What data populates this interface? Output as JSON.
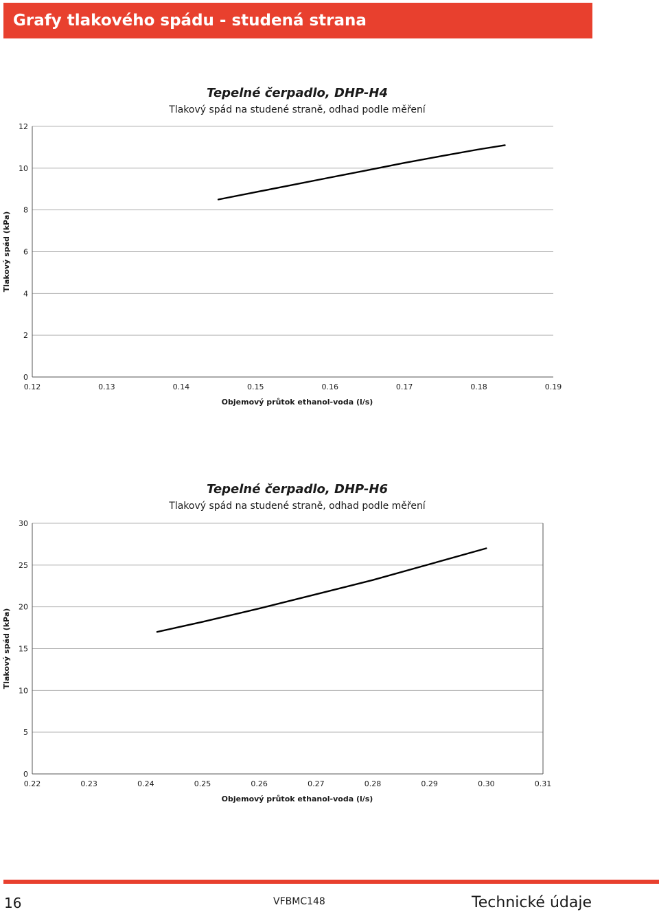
{
  "page": {
    "heading": "Grafy tlakového spádu - studená strana",
    "page_number": "16",
    "document_code": "VFBMC148",
    "section": "Technické údaje",
    "accent_color": "#e8402e"
  },
  "chart_data": [
    {
      "type": "line",
      "title": "Tepelné čerpadlo, DHP-H4",
      "subtitle": "Tlakový spád na studené straně, odhad podle měření",
      "xlabel": "Objemový průtok ethanol-voda (l/s)",
      "ylabel": "Tlakový spád (kPa)",
      "xlim": [
        0.12,
        0.19
      ],
      "ylim": [
        0,
        12
      ],
      "x_ticks": [
        "0.12",
        "0.13",
        "0.14",
        "0.15",
        "0.16",
        "0.17",
        "0.18",
        "0.19"
      ],
      "y_ticks": [
        "0",
        "2",
        "4",
        "6",
        "8",
        "10",
        "12"
      ],
      "grid": "horizontal",
      "series": [
        {
          "x": [
            0.145,
            0.15,
            0.155,
            0.16,
            0.165,
            0.17,
            0.175,
            0.18,
            0.1835
          ],
          "y": [
            8.5,
            8.85,
            9.2,
            9.55,
            9.9,
            10.25,
            10.58,
            10.9,
            11.1
          ]
        }
      ]
    },
    {
      "type": "line",
      "title": "Tepelné čerpadlo, DHP-H6",
      "subtitle": "Tlakový spád na studené straně, odhad podle měření",
      "xlabel": "Objemový průtok ethanol-voda (l/s)",
      "ylabel": "Tlakový spád (kPa)",
      "xlim": [
        0.22,
        0.31
      ],
      "ylim": [
        0,
        30
      ],
      "x_ticks": [
        "0.22",
        "0.23",
        "0.24",
        "0.25",
        "0.26",
        "0.27",
        "0.28",
        "0.29",
        "0.30",
        "0.31"
      ],
      "y_ticks": [
        "0",
        "5",
        "10",
        "15",
        "20",
        "25",
        "30"
      ],
      "grid": "horizontal",
      "series": [
        {
          "x": [
            0.242,
            0.25,
            0.26,
            0.27,
            0.28,
            0.29,
            0.3
          ],
          "y": [
            17.0,
            18.2,
            19.8,
            21.5,
            23.2,
            25.1,
            27.0
          ]
        }
      ]
    }
  ]
}
